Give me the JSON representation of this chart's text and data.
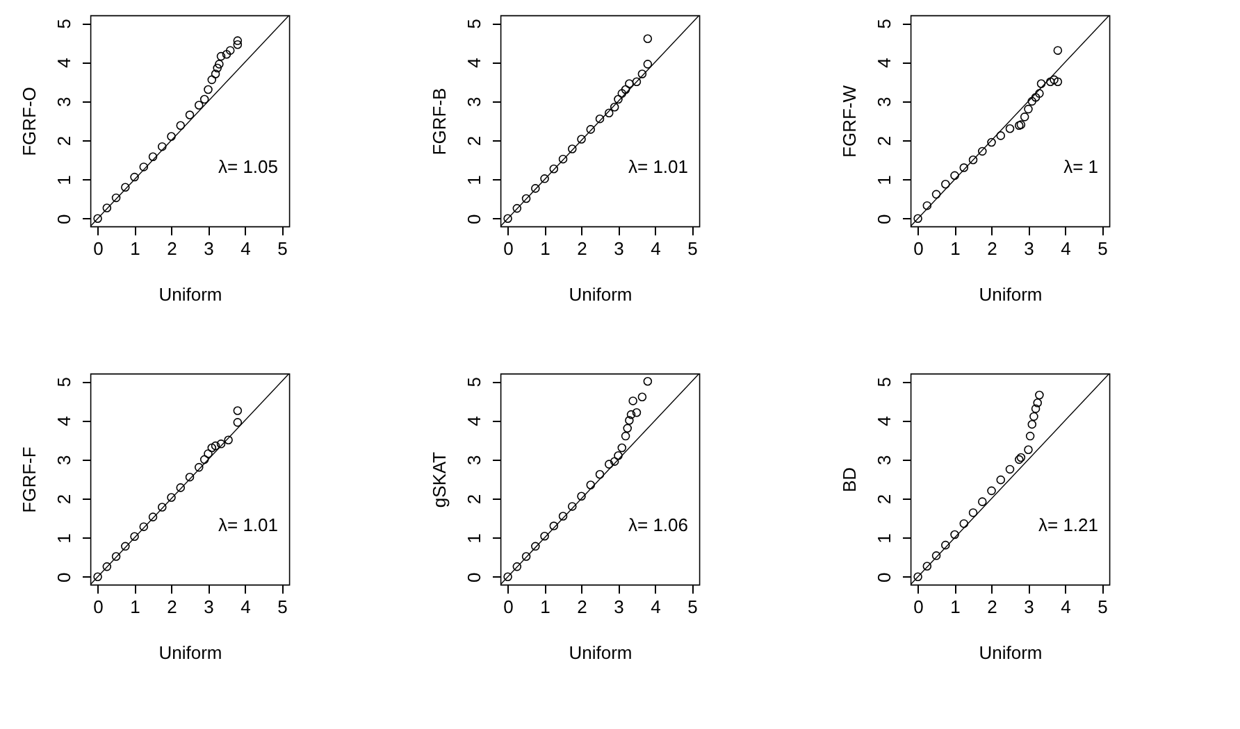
{
  "chart_data": [
    {
      "type": "scatter",
      "xlabel": "Uniform",
      "ylabel": "FGRF-O",
      "xlim": [
        -0.2,
        5.2
      ],
      "ylim": [
        -0.2,
        5.2
      ],
      "xticks": [
        0,
        1,
        2,
        3,
        4,
        5
      ],
      "yticks": [
        0,
        1,
        2,
        3,
        4,
        5
      ],
      "grid": false,
      "annotations": [
        "λ= 1.05"
      ],
      "series": [
        {
          "type": "scatter",
          "marker": "circle",
          "color": "#000000",
          "x": [
            0,
            0.25,
            0.5,
            0.75,
            1,
            1.25,
            1.5,
            1.75,
            2,
            2.25,
            2.5,
            2.75,
            2.9,
            3.0,
            3.1,
            3.2,
            3.25,
            3.3,
            3.35,
            3.5,
            3.6,
            3.8,
            3.8
          ],
          "values": [
            0,
            0.27,
            0.53,
            0.8,
            1.06,
            1.32,
            1.58,
            1.84,
            2.1,
            2.38,
            2.65,
            2.9,
            3.05,
            3.3,
            3.55,
            3.7,
            3.85,
            3.95,
            4.15,
            4.2,
            4.3,
            4.45,
            4.55
          ]
        },
        {
          "type": "line",
          "color": "#000000",
          "x": [
            -0.2,
            5.2
          ],
          "values": [
            -0.2,
            5.2
          ]
        }
      ]
    },
    {
      "type": "scatter",
      "xlabel": "Uniform",
      "ylabel": "FGRF-B",
      "xlim": [
        -0.2,
        5.2
      ],
      "ylim": [
        -0.2,
        5.2
      ],
      "xticks": [
        0,
        1,
        2,
        3,
        4,
        5
      ],
      "yticks": [
        0,
        1,
        2,
        3,
        4,
        5
      ],
      "grid": false,
      "annotations": [
        "λ= 1.01"
      ],
      "series": [
        {
          "type": "scatter",
          "marker": "circle",
          "color": "#000000",
          "x": [
            0,
            0.25,
            0.5,
            0.75,
            1,
            1.25,
            1.5,
            1.75,
            2,
            2.25,
            2.5,
            2.75,
            2.9,
            3.0,
            3.1,
            3.2,
            3.3,
            3.5,
            3.65,
            3.8,
            3.8
          ],
          "values": [
            0,
            0.26,
            0.51,
            0.77,
            1.02,
            1.27,
            1.52,
            1.78,
            2.03,
            2.28,
            2.55,
            2.7,
            2.85,
            3.05,
            3.2,
            3.3,
            3.45,
            3.5,
            3.7,
            3.95,
            4.6
          ]
        },
        {
          "type": "line",
          "color": "#000000",
          "x": [
            -0.2,
            5.2
          ],
          "values": [
            -0.2,
            5.2
          ]
        }
      ]
    },
    {
      "type": "scatter",
      "xlabel": "Uniform",
      "ylabel": "FGRF-W",
      "xlim": [
        -0.2,
        5.2
      ],
      "ylim": [
        -0.2,
        5.2
      ],
      "xticks": [
        0,
        1,
        2,
        3,
        4,
        5
      ],
      "yticks": [
        0,
        1,
        2,
        3,
        4,
        5
      ],
      "grid": false,
      "annotations": [
        "λ= 1"
      ],
      "series": [
        {
          "type": "scatter",
          "marker": "circle",
          "color": "#000000",
          "x": [
            0,
            0.25,
            0.5,
            0.75,
            1,
            1.25,
            1.5,
            1.75,
            2,
            2.25,
            2.5,
            2.75,
            2.8,
            2.9,
            3.0,
            3.1,
            3.2,
            3.3,
            3.35,
            3.6,
            3.7,
            3.8,
            3.8
          ],
          "values": [
            0,
            0.33,
            0.62,
            0.88,
            1.1,
            1.3,
            1.5,
            1.72,
            1.95,
            2.12,
            2.3,
            2.38,
            2.4,
            2.6,
            2.8,
            3.0,
            3.1,
            3.2,
            3.45,
            3.5,
            3.55,
            3.5,
            4.3
          ]
        },
        {
          "type": "line",
          "color": "#000000",
          "x": [
            -0.2,
            5.2
          ],
          "values": [
            -0.2,
            5.2
          ]
        }
      ]
    },
    {
      "type": "scatter",
      "xlabel": "Uniform",
      "ylabel": "FGRF-F",
      "xlim": [
        -0.2,
        5.2
      ],
      "ylim": [
        -0.2,
        5.2
      ],
      "xticks": [
        0,
        1,
        2,
        3,
        4,
        5
      ],
      "yticks": [
        0,
        1,
        2,
        3,
        4,
        5
      ],
      "grid": false,
      "annotations": [
        "λ= 1.01"
      ],
      "series": [
        {
          "type": "scatter",
          "marker": "circle",
          "color": "#000000",
          "x": [
            0,
            0.25,
            0.5,
            0.75,
            1,
            1.25,
            1.5,
            1.75,
            2,
            2.25,
            2.5,
            2.75,
            2.9,
            3.0,
            3.1,
            3.2,
            3.35,
            3.55,
            3.8,
            3.8
          ],
          "values": [
            0,
            0.26,
            0.52,
            0.78,
            1.03,
            1.28,
            1.53,
            1.78,
            2.03,
            2.28,
            2.55,
            2.8,
            3.0,
            3.15,
            3.3,
            3.35,
            3.4,
            3.5,
            3.95,
            4.25
          ]
        },
        {
          "type": "line",
          "color": "#000000",
          "x": [
            -0.2,
            5.2
          ],
          "values": [
            -0.2,
            5.2
          ]
        }
      ]
    },
    {
      "type": "scatter",
      "xlabel": "Uniform",
      "ylabel": "gSKAT",
      "xlim": [
        -0.2,
        5.2
      ],
      "ylim": [
        -0.2,
        5.2
      ],
      "xticks": [
        0,
        1,
        2,
        3,
        4,
        5
      ],
      "yticks": [
        0,
        1,
        2,
        3,
        4,
        5
      ],
      "grid": false,
      "annotations": [
        "λ= 1.06"
      ],
      "series": [
        {
          "type": "scatter",
          "marker": "circle",
          "color": "#000000",
          "x": [
            0,
            0.25,
            0.5,
            0.75,
            1,
            1.25,
            1.5,
            1.75,
            2,
            2.25,
            2.5,
            2.75,
            2.9,
            3.0,
            3.1,
            3.2,
            3.25,
            3.3,
            3.35,
            3.4,
            3.5,
            3.65,
            3.8
          ],
          "values": [
            0,
            0.26,
            0.52,
            0.78,
            1.04,
            1.3,
            1.55,
            1.8,
            2.06,
            2.35,
            2.62,
            2.88,
            2.95,
            3.1,
            3.3,
            3.6,
            3.8,
            4.0,
            4.15,
            4.5,
            4.2,
            4.6,
            5.0
          ]
        },
        {
          "type": "line",
          "color": "#000000",
          "x": [
            -0.2,
            5.2
          ],
          "values": [
            -0.2,
            5.2
          ]
        }
      ]
    },
    {
      "type": "scatter",
      "xlabel": "Uniform",
      "ylabel": "BD",
      "xlim": [
        -0.2,
        5.2
      ],
      "ylim": [
        -0.2,
        5.2
      ],
      "xticks": [
        0,
        1,
        2,
        3,
        4,
        5
      ],
      "yticks": [
        0,
        1,
        2,
        3,
        4,
        5
      ],
      "grid": false,
      "annotations": [
        "λ= 1.21"
      ],
      "series": [
        {
          "type": "scatter",
          "marker": "circle",
          "color": "#000000",
          "x": [
            0,
            0.25,
            0.5,
            0.75,
            1,
            1.25,
            1.5,
            1.75,
            2,
            2.25,
            2.5,
            2.75,
            2.8,
            3.0,
            3.05,
            3.1,
            3.15,
            3.2,
            3.25,
            3.3
          ],
          "values": [
            0,
            0.27,
            0.54,
            0.81,
            1.08,
            1.36,
            1.64,
            1.92,
            2.2,
            2.48,
            2.75,
            3.0,
            3.05,
            3.25,
            3.6,
            3.9,
            4.1,
            4.3,
            4.45,
            4.65
          ]
        },
        {
          "type": "line",
          "color": "#000000",
          "x": [
            -0.2,
            5.2
          ],
          "values": [
            -0.2,
            5.2
          ]
        }
      ]
    }
  ]
}
